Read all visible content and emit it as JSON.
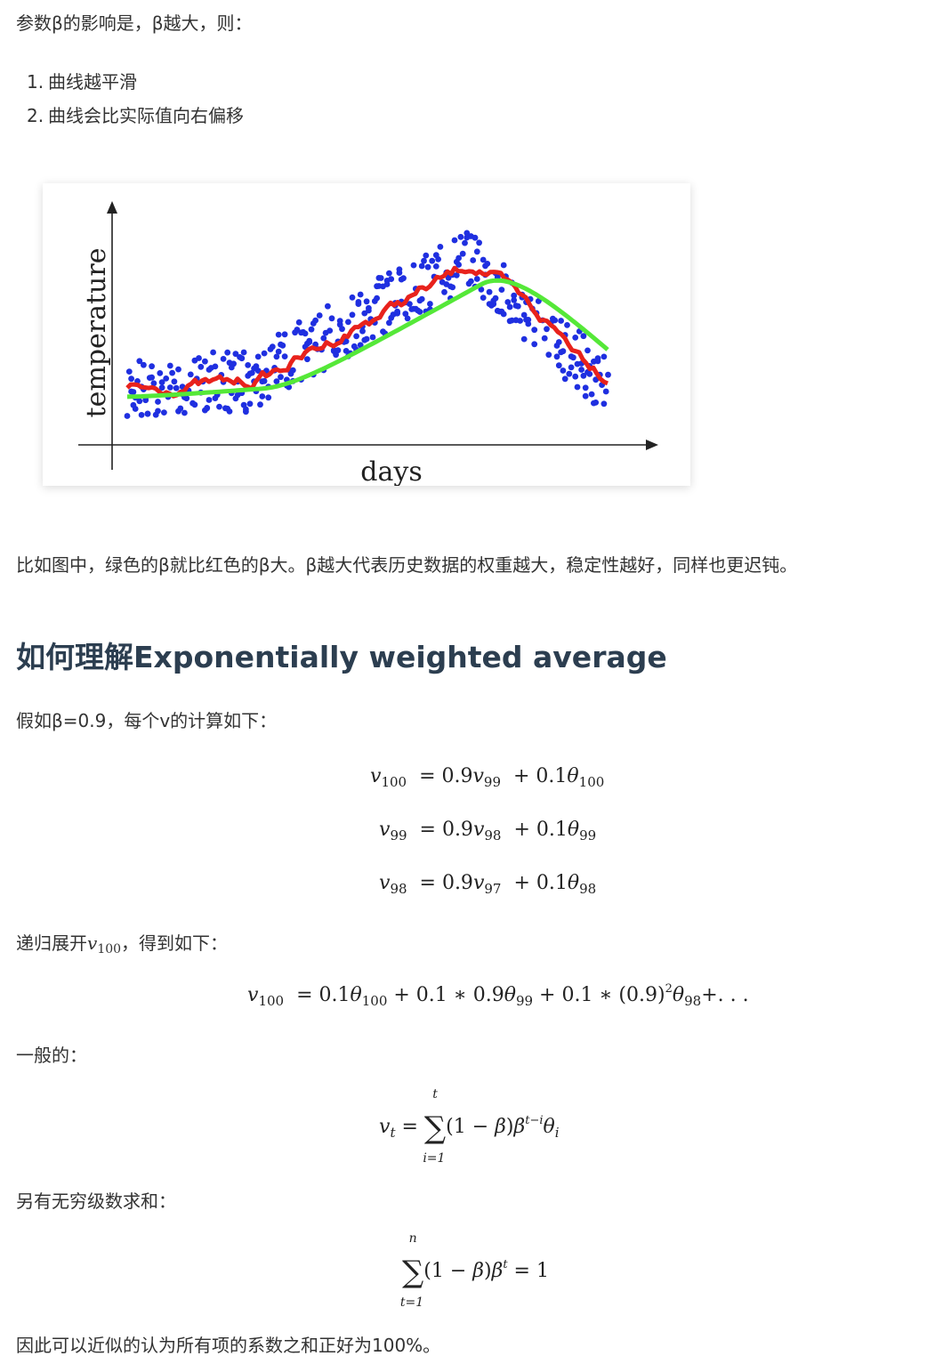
{
  "intro": "参数β的影响是，β越大，则：",
  "list": [
    {
      "num": "1.",
      "text": "曲线越平滑"
    },
    {
      "num": "2.",
      "text": "曲线会比实际值向右偏移"
    }
  ],
  "figure": {
    "ylabel": "temperature",
    "xlabel": "days",
    "colors": {
      "points": "#1f2fe0",
      "red": "#e8221c",
      "green": "#55e838",
      "axis": "#222222"
    }
  },
  "explain": "比如图中，绿色的β就比红色的β大。β越大代表历史数据的权重越大，稳定性越好，同样也更迟钝。",
  "heading": "如何理解Exponentially weighted average",
  "assume": "假如β=0.9，每个v的计算如下：",
  "recursive": {
    "before": "递归展开",
    "var": "v",
    "sub": "100",
    "after": "，得到如下："
  },
  "general": "一般的：",
  "infinite": "另有无穷级数求和：",
  "conclusion": "因此可以近似的认为所有项的系数之和正好为100%。"
}
